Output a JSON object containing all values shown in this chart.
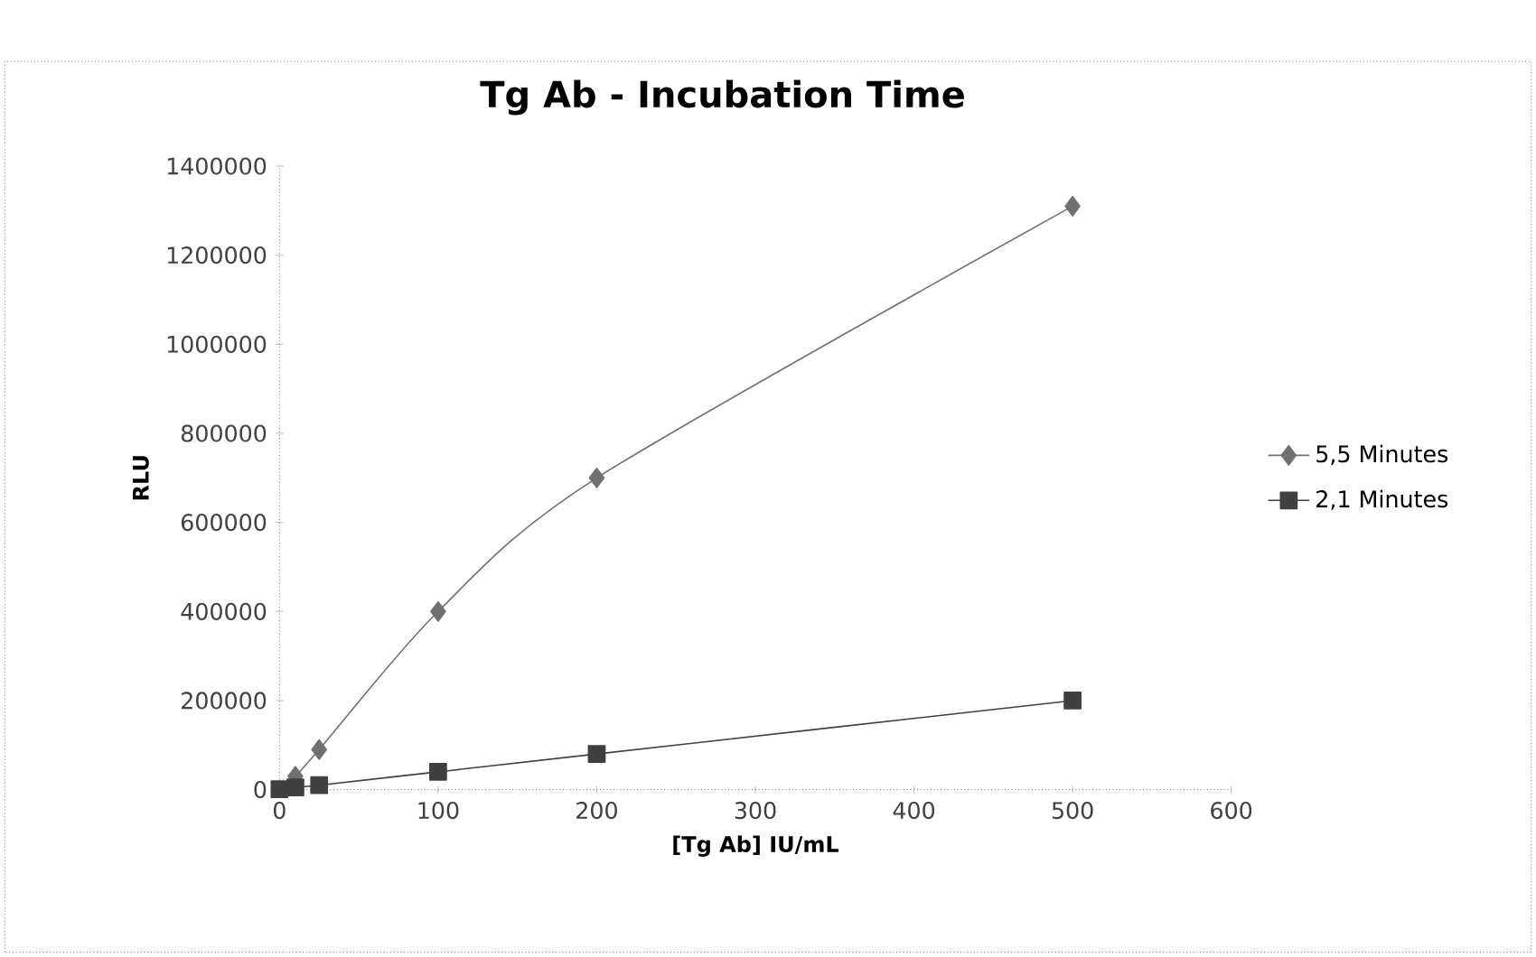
{
  "chart_data": {
    "type": "line",
    "title": "Tg Ab - Incubation Time",
    "xlabel": "[Tg Ab] IU/mL",
    "ylabel": "RLU",
    "xlim": [
      0,
      600
    ],
    "xticks": [
      0,
      100,
      200,
      300,
      400,
      500,
      600
    ],
    "ylim": [
      0,
      1400000
    ],
    "yticks": [
      0,
      200000,
      400000,
      600000,
      800000,
      1000000,
      1200000,
      1400000
    ],
    "grid": false,
    "legend": "right",
    "line_style": "solid",
    "series": [
      {
        "name": "5,5 Minutes",
        "color": "#707070",
        "marker": "diamond",
        "x": [
          10,
          25,
          100,
          200,
          500
        ],
        "values": [
          30000,
          90000,
          400000,
          700000,
          1310000
        ]
      },
      {
        "name": "2,1 Minutes",
        "color": "#404040",
        "marker": "square",
        "x": [
          0,
          10,
          25,
          100,
          200,
          500
        ],
        "values": [
          1000,
          5000,
          10000,
          40000,
          80000,
          200000
        ]
      }
    ]
  }
}
